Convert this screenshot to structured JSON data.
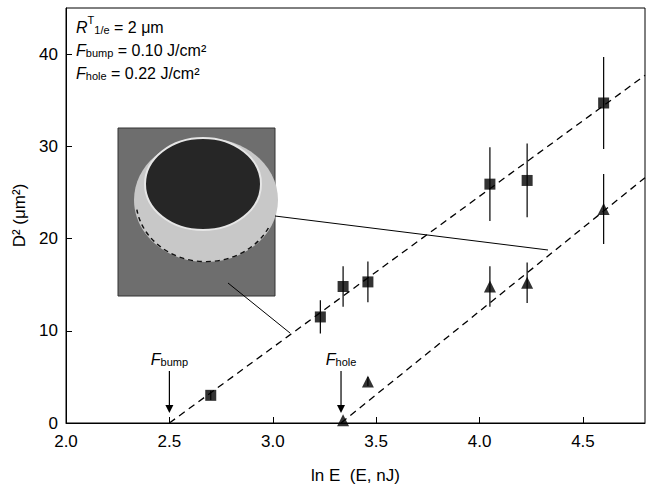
{
  "chart_data": {
    "type": "scatter",
    "xlabel": "ln E  (E, nJ)",
    "ylabel": "D² (μm²)",
    "xlim": [
      2.0,
      4.8
    ],
    "xticks": [
      {
        "value": 2.0,
        "label": "2.0"
      },
      {
        "value": 2.5,
        "label": "2.5"
      },
      {
        "value": 3.0,
        "label": "3.0"
      },
      {
        "value": 3.5,
        "label": "3.5"
      },
      {
        "value": 4.0,
        "label": "4.0"
      },
      {
        "value": 4.5,
        "label": "4.5"
      }
    ],
    "ylim": [
      0,
      45
    ],
    "yticks": [
      0,
      10,
      20,
      30,
      40
    ],
    "grid": false,
    "series": [
      {
        "type": "scatter",
        "marker": "square",
        "color": "#000000",
        "x": [
          2.7,
          3.23,
          3.34,
          3.46,
          4.05,
          4.23,
          4.6
        ],
        "values": [
          3.0,
          11.5,
          14.8,
          15.3,
          25.9,
          26.3,
          34.7
        ],
        "errors": [
          0.5,
          1.8,
          2.2,
          2.2,
          4.0,
          4.0,
          5.0
        ]
      },
      {
        "type": "scatter",
        "marker": "triangle",
        "color": "#000000",
        "x": [
          3.34,
          3.46,
          4.05,
          4.23,
          4.6
        ],
        "values": [
          0.3,
          4.5,
          14.8,
          15.2,
          23.2
        ],
        "errors": [
          0,
          0.5,
          2.2,
          2.2,
          3.8
        ]
      },
      {
        "type": "line",
        "line_style": "dashed",
        "color": "#000000",
        "x": [
          2.5,
          4.8
        ],
        "values": [
          0,
          37.7
        ]
      },
      {
        "type": "line",
        "line_style": "dashed",
        "color": "#000000",
        "x": [
          3.33,
          4.8
        ],
        "values": [
          0,
          26.6
        ]
      }
    ],
    "annotations": [
      {
        "base": "R",
        "sub": "1/e",
        "sup": "T",
        "tail": " = 2 μm"
      },
      {
        "base": "F",
        "sub": "bump",
        "tail": " = 0.10 J/cm²"
      },
      {
        "base": "F",
        "sub": "hole",
        "tail": " = 0.22 J/cm²"
      }
    ],
    "threshold_markers": [
      {
        "base": "F",
        "sub": "bump",
        "x": 2.5
      },
      {
        "base": "F",
        "sub": "hole",
        "x": 3.33
      }
    ]
  }
}
